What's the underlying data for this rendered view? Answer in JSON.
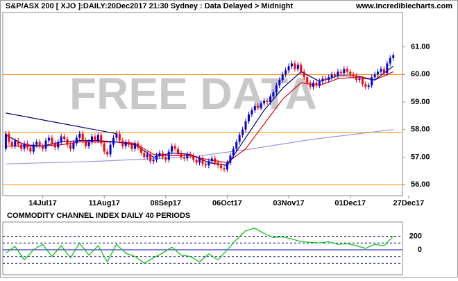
{
  "header": {
    "site": "www.incrediblecharts.com"
  },
  "chart_data": [
    {
      "type": "candlestick",
      "title": "S&P/ASX 200 [ XJO ]:DAILY:20Dec2017 21:30 Sydney : Data Delayed > Midnight",
      "watermark": "FREE DATA",
      "xlim": [
        -1,
        129
      ],
      "ylim": [
        55.6,
        62.25
      ],
      "xticks": [
        {
          "value": 12,
          "label": "14Jul17"
        },
        {
          "value": 32,
          "label": "11Aug17"
        },
        {
          "value": 52,
          "label": "08Sep17"
        },
        {
          "value": 72,
          "label": "06Oct17"
        },
        {
          "value": 92,
          "label": "03Nov17"
        },
        {
          "value": 112,
          "label": "01Dec17"
        },
        {
          "value": 131,
          "label": "27Dec17"
        }
      ],
      "yticks": [
        {
          "value": 61,
          "label": "61.00"
        },
        {
          "value": 60,
          "label": "60.00"
        },
        {
          "value": 59,
          "label": "59.00"
        },
        {
          "value": 58,
          "label": "58.00"
        },
        {
          "value": 57,
          "label": "57.00"
        },
        {
          "value": 56,
          "label": "56.00"
        }
      ],
      "up_color": "#0000e0",
      "down_color": "#ff0000",
      "hlines": [
        60,
        57.9,
        56
      ],
      "hline_color": "#ff8c00",
      "open": [
        57.3,
        57.85,
        57.55,
        57.4,
        57.6,
        57.45,
        57.3,
        57.5,
        57.35,
        57.2,
        57.45,
        57.55,
        57.4,
        57.3,
        57.6,
        57.7,
        57.5,
        57.35,
        57.55,
        57.75,
        57.65,
        57.45,
        57.3,
        57.5,
        57.7,
        57.85,
        57.6,
        57.4,
        57.55,
        57.75,
        57.6,
        57.8,
        57.5,
        57.2,
        57.1,
        57.45,
        57.7,
        57.85,
        57.6,
        57.4,
        57.55,
        57.45,
        57.3,
        57.5,
        57.35,
        57.15,
        57.0,
        57.1,
        56.85,
        56.9,
        57.05,
        57.15,
        57.0,
        56.9,
        57.2,
        57.4,
        57.3,
        57.15,
        57.0,
        56.95,
        57.1,
        57.05,
        56.9,
        56.8,
        56.95,
        56.75,
        56.7,
        56.85,
        56.95,
        56.8,
        56.7,
        56.6,
        56.55,
        56.8,
        57.05,
        57.3,
        57.55,
        57.8,
        58.0,
        58.3,
        58.55,
        58.7,
        58.85,
        58.8,
        58.95,
        59.05,
        59.0,
        59.2,
        59.35,
        59.6,
        59.8,
        60.0,
        60.15,
        60.3,
        60.4,
        60.2,
        60.35,
        60.1,
        59.9,
        59.7,
        59.55,
        59.7,
        59.6,
        59.75,
        59.85,
        59.8,
        59.9,
        60.0,
        59.95,
        60.1,
        60.05,
        60.2,
        60.1,
        60.0,
        59.95,
        59.8,
        59.85,
        59.65,
        59.55,
        59.6,
        59.9,
        60.0,
        60.1,
        60.2,
        60.05,
        60.4,
        60.6
      ],
      "high": [
        57.95,
        57.95,
        57.65,
        57.7,
        57.7,
        57.55,
        57.6,
        57.6,
        57.45,
        57.55,
        57.65,
        57.65,
        57.5,
        57.7,
        57.8,
        57.8,
        57.6,
        57.65,
        57.85,
        57.85,
        57.75,
        57.55,
        57.6,
        57.8,
        57.95,
        57.95,
        57.7,
        57.65,
        57.85,
        57.85,
        57.9,
        57.9,
        57.6,
        57.3,
        57.55,
        57.8,
        57.95,
        57.95,
        57.7,
        57.65,
        57.65,
        57.55,
        57.6,
        57.6,
        57.45,
        57.25,
        57.2,
        57.2,
        57.0,
        57.15,
        57.25,
        57.25,
        57.1,
        57.3,
        57.5,
        57.5,
        57.4,
        57.25,
        57.1,
        57.2,
        57.2,
        57.15,
        57.0,
        57.05,
        57.05,
        56.85,
        56.95,
        57.05,
        57.05,
        56.9,
        56.8,
        56.7,
        56.9,
        57.15,
        57.4,
        57.65,
        57.9,
        58.1,
        58.4,
        58.65,
        58.8,
        58.95,
        58.95,
        59.05,
        59.15,
        59.15,
        59.3,
        59.45,
        59.7,
        59.9,
        60.1,
        60.25,
        60.4,
        60.5,
        60.5,
        60.45,
        60.45,
        60.2,
        60.0,
        59.8,
        59.8,
        59.8,
        59.85,
        59.95,
        59.95,
        60.0,
        60.1,
        60.1,
        60.2,
        60.2,
        60.3,
        60.3,
        60.2,
        60.1,
        60.05,
        59.95,
        59.95,
        59.75,
        59.7,
        60.0,
        60.1,
        60.2,
        60.3,
        60.3,
        60.5,
        60.7,
        60.8
      ],
      "low": [
        57.2,
        57.45,
        57.3,
        57.3,
        57.35,
        57.2,
        57.2,
        57.25,
        57.1,
        57.1,
        57.35,
        57.3,
        57.2,
        57.2,
        57.5,
        57.4,
        57.25,
        57.25,
        57.45,
        57.55,
        57.35,
        57.2,
        57.2,
        57.4,
        57.6,
        57.5,
        57.3,
        57.3,
        57.45,
        57.5,
        57.5,
        57.4,
        57.1,
        57.0,
        57.0,
        57.35,
        57.6,
        57.5,
        57.3,
        57.3,
        57.35,
        57.2,
        57.2,
        57.25,
        57.05,
        56.9,
        56.9,
        56.75,
        56.75,
        56.8,
        56.95,
        56.9,
        56.8,
        56.8,
        57.1,
        57.2,
        57.05,
        56.9,
        56.85,
        56.85,
        56.95,
        56.8,
        56.7,
        56.7,
        56.65,
        56.6,
        56.6,
        56.75,
        56.7,
        56.6,
        56.5,
        56.45,
        56.45,
        56.7,
        56.95,
        57.2,
        57.45,
        57.7,
        57.9,
        58.2,
        58.45,
        58.6,
        58.7,
        58.7,
        58.85,
        58.9,
        58.9,
        59.1,
        59.25,
        59.5,
        59.7,
        59.9,
        60.05,
        60.2,
        60.1,
        60.1,
        60.0,
        59.8,
        59.6,
        59.45,
        59.45,
        59.5,
        59.5,
        59.65,
        59.7,
        59.7,
        59.8,
        59.85,
        59.85,
        59.95,
        59.95,
        60.0,
        59.9,
        59.85,
        59.7,
        59.7,
        59.55,
        59.45,
        59.45,
        59.5,
        59.8,
        59.9,
        60.0,
        59.95,
        59.95,
        60.3,
        60.5
      ],
      "close": [
        57.85,
        57.55,
        57.4,
        57.6,
        57.45,
        57.3,
        57.5,
        57.35,
        57.2,
        57.45,
        57.55,
        57.4,
        57.3,
        57.6,
        57.7,
        57.5,
        57.35,
        57.55,
        57.75,
        57.65,
        57.45,
        57.3,
        57.5,
        57.7,
        57.85,
        57.6,
        57.4,
        57.55,
        57.75,
        57.6,
        57.8,
        57.5,
        57.2,
        57.1,
        57.45,
        57.7,
        57.85,
        57.6,
        57.4,
        57.55,
        57.45,
        57.3,
        57.5,
        57.35,
        57.15,
        57.0,
        57.1,
        56.85,
        56.9,
        57.05,
        57.15,
        57.0,
        56.9,
        57.2,
        57.4,
        57.3,
        57.15,
        57.0,
        56.95,
        57.1,
        57.05,
        56.9,
        56.8,
        56.95,
        56.75,
        56.7,
        56.85,
        56.95,
        56.8,
        56.7,
        56.6,
        56.55,
        56.8,
        57.05,
        57.3,
        57.55,
        57.8,
        58.0,
        58.3,
        58.55,
        58.7,
        58.85,
        58.8,
        58.95,
        59.05,
        59.0,
        59.2,
        59.35,
        59.6,
        59.8,
        60.0,
        60.15,
        60.3,
        60.4,
        60.2,
        60.35,
        60.1,
        59.9,
        59.7,
        59.55,
        59.7,
        59.6,
        59.75,
        59.85,
        59.8,
        59.9,
        60.0,
        59.95,
        60.1,
        60.05,
        60.2,
        60.1,
        60.0,
        59.95,
        59.8,
        59.85,
        59.65,
        59.55,
        59.6,
        59.9,
        60.0,
        60.1,
        60.2,
        60.05,
        60.4,
        60.6,
        60.7
      ],
      "series": [
        {
          "color": "#000080",
          "x": [
            0,
            36
          ],
          "values": [
            58.6,
            57.85
          ]
        },
        {
          "color": "#9999dd",
          "x": [
            0,
            30,
            60,
            80,
            100,
            126
          ],
          "values": [
            56.75,
            56.85,
            57.0,
            57.3,
            57.65,
            58.0
          ]
        },
        {
          "color": "#e00000",
          "x": [
            0,
            6,
            12,
            18,
            24,
            30,
            36,
            42,
            48,
            54,
            60,
            66,
            72,
            78,
            84,
            90,
            96,
            102,
            108,
            114,
            120,
            126
          ],
          "values": [
            57.4,
            57.4,
            57.4,
            57.45,
            57.55,
            57.55,
            57.55,
            57.5,
            57.1,
            57.05,
            57.05,
            56.9,
            56.8,
            57.3,
            58.2,
            59.1,
            59.7,
            59.6,
            59.85,
            59.9,
            59.8,
            60.1
          ]
        },
        {
          "color": "#000080",
          "x": [
            0,
            6,
            12,
            18,
            24,
            30,
            36,
            42,
            48,
            54,
            60,
            66,
            72,
            78,
            84,
            90,
            96,
            102,
            108,
            114,
            120,
            126
          ],
          "values": [
            57.8,
            57.45,
            57.4,
            57.55,
            57.6,
            57.6,
            57.55,
            57.45,
            57.0,
            57.15,
            57.1,
            56.8,
            56.7,
            57.7,
            58.7,
            59.5,
            60.1,
            59.75,
            59.95,
            59.95,
            59.8,
            60.3
          ]
        }
      ]
    },
    {
      "type": "line",
      "title": "COMMODITY CHANNEL INDEX DAILY 40 PERIODS",
      "xlim": [
        -1,
        129
      ],
      "ylim": [
        -370,
        410
      ],
      "yticks": [
        200,
        0
      ],
      "hlines": [
        -200,
        -100,
        100,
        200
      ],
      "series": [
        {
          "color": "#00c000",
          "x": [
            0,
            3,
            6,
            9,
            12,
            15,
            18,
            21,
            24,
            27,
            30,
            33,
            36,
            39,
            42,
            45,
            48,
            51,
            54,
            57,
            60,
            63,
            66,
            69,
            72,
            75,
            78,
            81,
            84,
            87,
            90,
            93,
            96,
            99,
            102,
            105,
            108,
            111,
            114,
            117,
            120,
            123,
            126
          ],
          "values": [
            -50,
            50,
            -150,
            0,
            80,
            -100,
            60,
            -120,
            100,
            -80,
            60,
            -180,
            80,
            -50,
            -100,
            -200,
            -120,
            -50,
            40,
            -80,
            -100,
            -180,
            -60,
            -150,
            0,
            150,
            280,
            320,
            240,
            180,
            190,
            160,
            120,
            110,
            100,
            120,
            80,
            90,
            60,
            20,
            80,
            60,
            200
          ]
        }
      ]
    }
  ]
}
